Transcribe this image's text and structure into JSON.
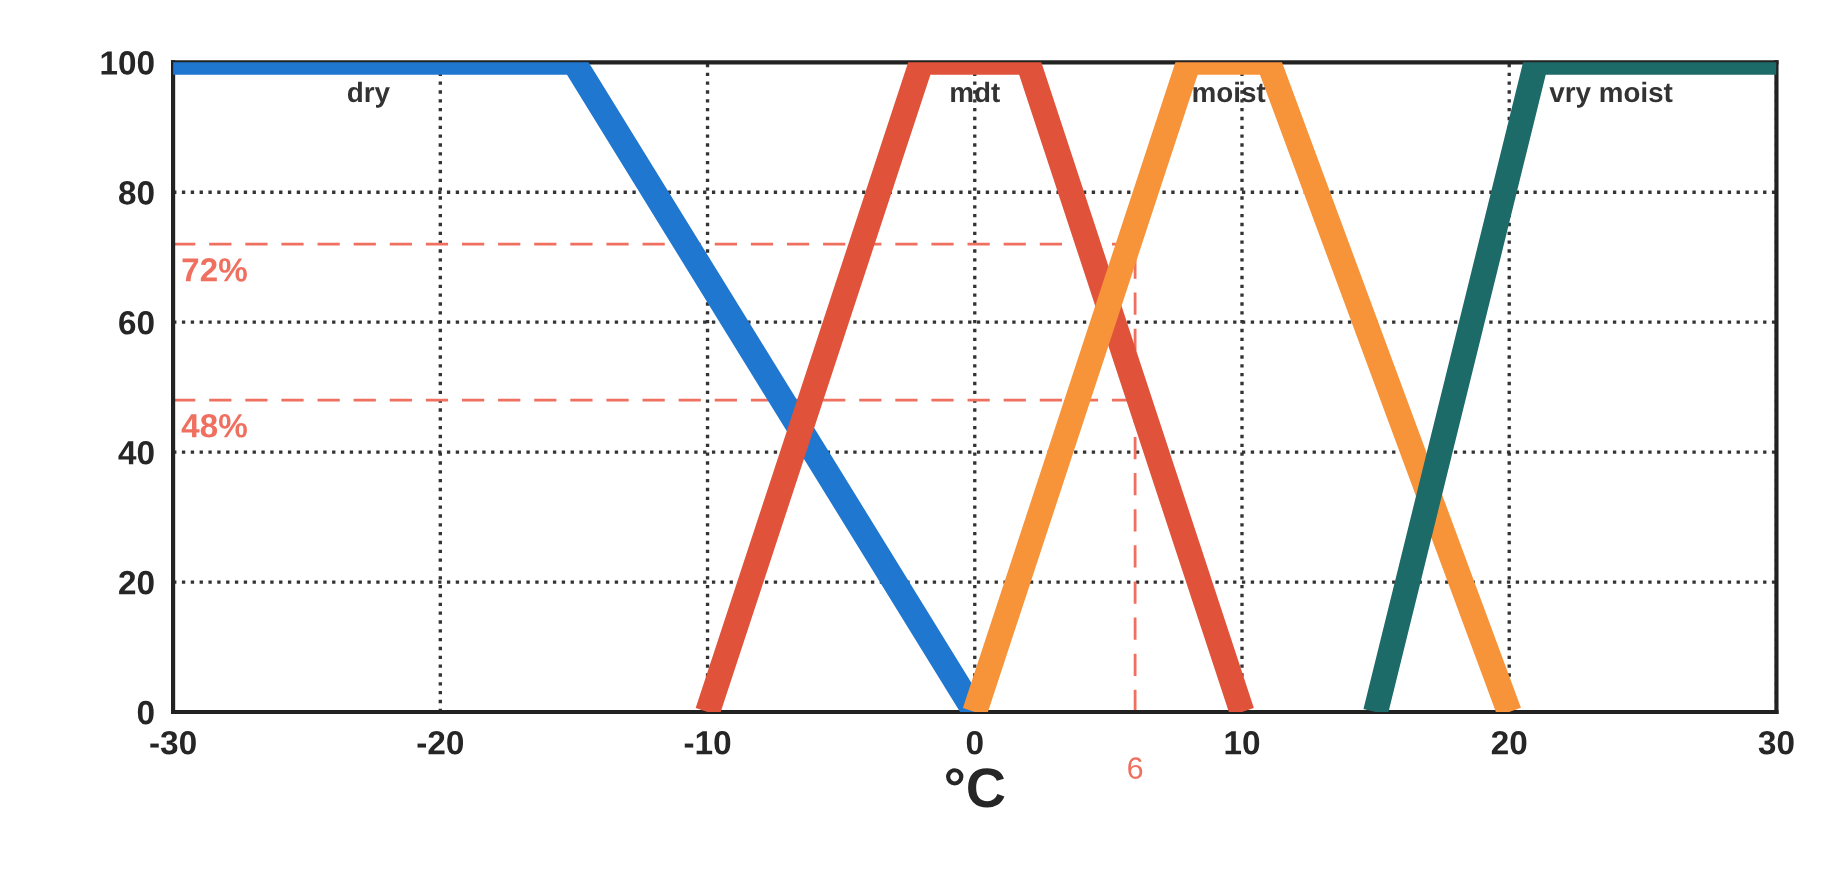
{
  "chart_data": {
    "type": "line",
    "xlabel": "°C",
    "xlim": [
      -30,
      30
    ],
    "xticks": [
      -30,
      -20,
      -10,
      0,
      10,
      20,
      30
    ],
    "ylim": [
      0,
      100
    ],
    "yticks": [
      0,
      20,
      40,
      60,
      80,
      100
    ],
    "grid": true,
    "legend": false,
    "marker": "none",
    "line_style": "solid",
    "series": [
      {
        "name": "dry",
        "color": "#1f77d0",
        "x": [
          -30,
          -15,
          0
        ],
        "values": [
          100,
          100,
          0
        ]
      },
      {
        "name": "mdt",
        "color": "#e0533a",
        "x": [
          -10,
          -2,
          2,
          10
        ],
        "values": [
          0,
          100,
          100,
          0
        ]
      },
      {
        "name": "moist",
        "color": "#f7943a",
        "x": [
          0,
          8,
          11,
          20
        ],
        "values": [
          0,
          100,
          100,
          0
        ]
      },
      {
        "name": "vry moist",
        "color": "#1d6b68",
        "x": [
          15,
          21,
          30
        ],
        "values": [
          0,
          100,
          100
        ]
      }
    ],
    "ref_lines": [
      {
        "axis": "y",
        "value": 72,
        "label": "72%",
        "color": "#f07060",
        "line_style": "dashed"
      },
      {
        "axis": "y",
        "value": 48,
        "label": "48%",
        "color": "#f07060",
        "line_style": "dashed"
      },
      {
        "axis": "x",
        "value": 6,
        "label": "6",
        "color": "#f07060",
        "line_style": "dashed"
      }
    ]
  }
}
